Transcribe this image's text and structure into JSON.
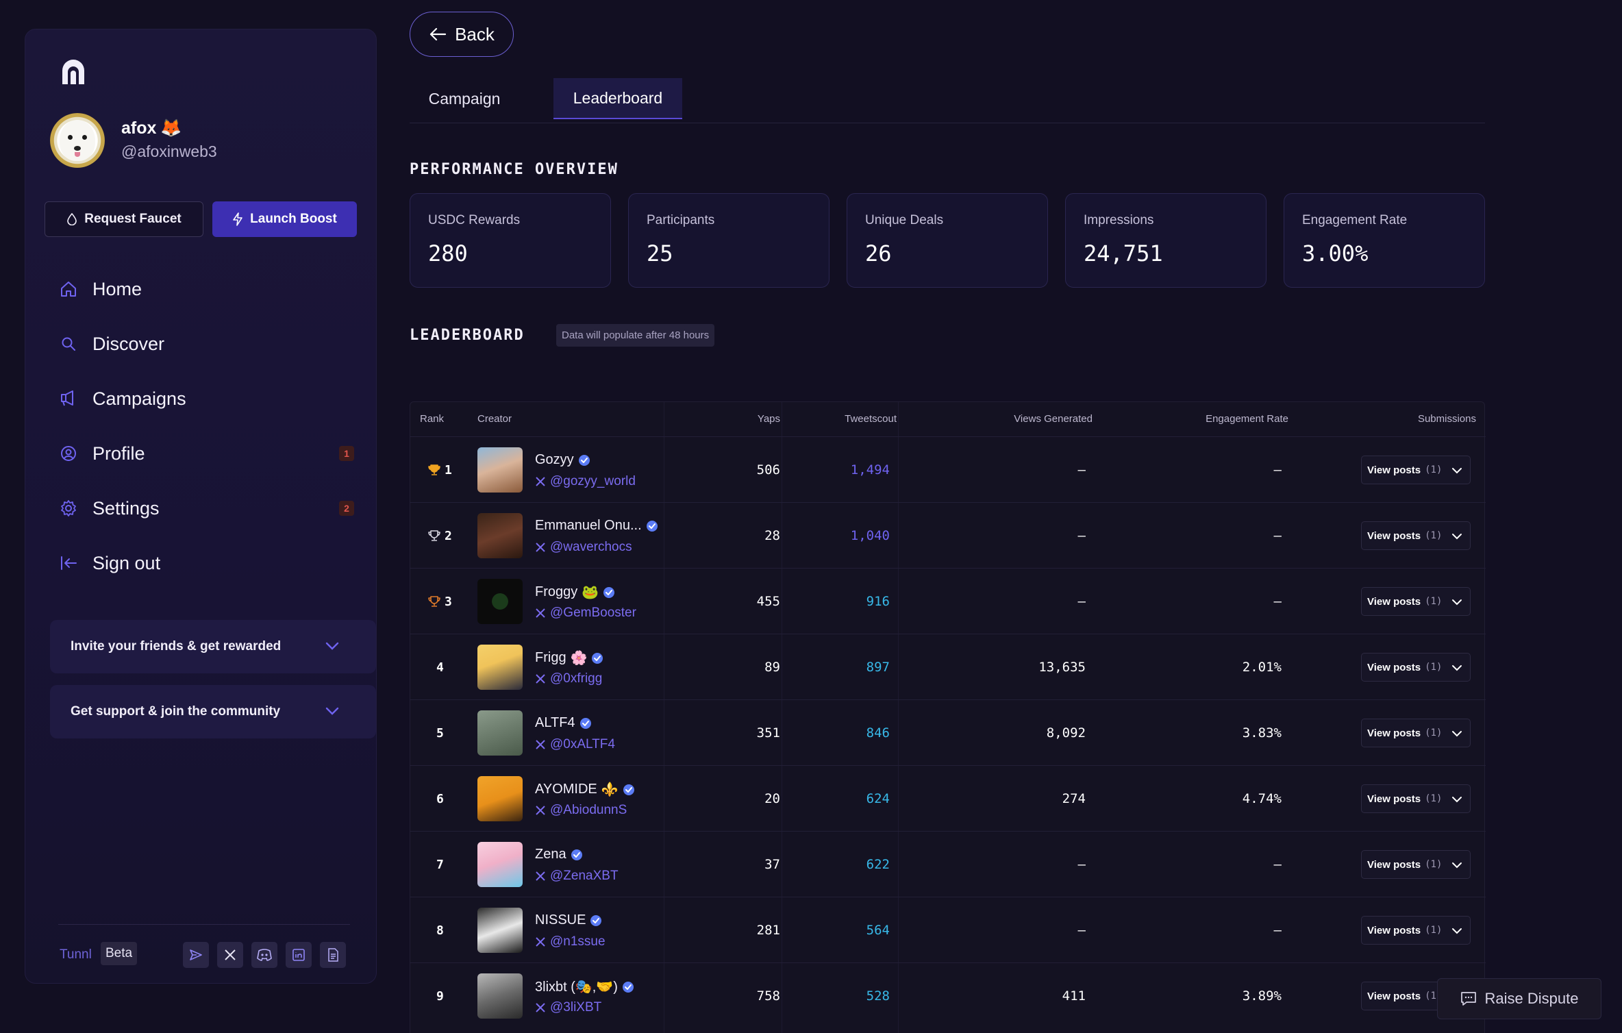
{
  "sidebar": {
    "user": {
      "name": "afox",
      "name_emoji": "🦊",
      "handle": "@afoxinweb3"
    },
    "buttons": {
      "faucet": "Request Faucet",
      "boost": "Launch Boost"
    },
    "nav": [
      {
        "label": "Home",
        "icon": "home-icon"
      },
      {
        "label": "Discover",
        "icon": "search-icon"
      },
      {
        "label": "Campaigns",
        "icon": "megaphone-icon"
      },
      {
        "label": "Profile",
        "icon": "user-circle-icon",
        "badge": "1"
      },
      {
        "label": "Settings",
        "icon": "gear-icon",
        "badge": "2"
      },
      {
        "label": "Sign out",
        "icon": "sign-out-icon"
      }
    ],
    "accordions": [
      {
        "label": "Invite your friends & get rewarded"
      },
      {
        "label": "Get support & join the community"
      }
    ],
    "footer": {
      "brand": "Tunnl",
      "badge": "Beta",
      "socials": [
        "telegram-icon",
        "x-icon",
        "discord-icon",
        "linkedin-icon",
        "docs-icon"
      ]
    }
  },
  "main": {
    "back_label": "Back",
    "tabs": [
      {
        "label": "Campaign"
      },
      {
        "label": "Leaderboard",
        "active": true
      }
    ],
    "overview": {
      "title": "PERFORMANCE OVERVIEW",
      "stats": [
        {
          "label": "USDC Rewards",
          "value": "280"
        },
        {
          "label": "Participants",
          "value": "25"
        },
        {
          "label": "Unique Deals",
          "value": "26"
        },
        {
          "label": "Impressions",
          "value": "24,751"
        },
        {
          "label": "Engagement Rate",
          "value": "3.00%"
        }
      ]
    },
    "leaderboard": {
      "title": "LEADERBOARD",
      "note": "Data will populate after 48 hours",
      "columns": {
        "rank": "Rank",
        "creator": "Creator",
        "yaps": "Yaps",
        "tweetscout": "Tweetscout",
        "views": "Views Generated",
        "engagement": "Engagement Rate",
        "submissions": "Submissions"
      },
      "view_label": "View posts",
      "rows": [
        {
          "rank": "1",
          "trophy": "gold",
          "name": "Gozyy",
          "emoji": "",
          "handle": "@gozyy_world",
          "yaps": "506",
          "tweetscout": "1,494",
          "ts_color": "#6f63f0",
          "views": "–",
          "engagement": "–",
          "posts": "(1)"
        },
        {
          "rank": "2",
          "trophy": "silver",
          "name": "Emmanuel Onu...",
          "emoji": "",
          "handle": "@waverchocs",
          "yaps": "28",
          "tweetscout": "1,040",
          "ts_color": "#6f63f0",
          "views": "–",
          "engagement": "–",
          "posts": "(1)"
        },
        {
          "rank": "3",
          "trophy": "bronze",
          "name": "Froggy",
          "emoji": "🐸",
          "handle": "@GemBooster",
          "yaps": "455",
          "tweetscout": "916",
          "ts_color": "#38b8e8",
          "views": "–",
          "engagement": "–",
          "posts": "(1)"
        },
        {
          "rank": "4",
          "trophy": "",
          "name": "Frigg",
          "emoji": "🌸",
          "handle": "@0xfrigg",
          "yaps": "89",
          "tweetscout": "897",
          "ts_color": "#38b8e8",
          "views": "13,635",
          "engagement": "2.01%",
          "posts": "(1)"
        },
        {
          "rank": "5",
          "trophy": "",
          "name": "ALTF4",
          "emoji": "",
          "handle": "@0xALTF4",
          "yaps": "351",
          "tweetscout": "846",
          "ts_color": "#38b8e8",
          "views": "8,092",
          "engagement": "3.83%",
          "posts": "(1)"
        },
        {
          "rank": "6",
          "trophy": "",
          "name": "AYOMIDE",
          "emoji": "⚜️",
          "handle": "@AbiodunnS",
          "yaps": "20",
          "tweetscout": "624",
          "ts_color": "#38b8e8",
          "views": "274",
          "engagement": "4.74%",
          "posts": "(1)"
        },
        {
          "rank": "7",
          "trophy": "",
          "name": "Zena",
          "emoji": "",
          "handle": "@ZenaXBT",
          "yaps": "37",
          "tweetscout": "622",
          "ts_color": "#38b8e8",
          "views": "–",
          "engagement": "–",
          "posts": "(1)"
        },
        {
          "rank": "8",
          "trophy": "",
          "name": "NISSUE",
          "emoji": "",
          "handle": "@n1ssue",
          "yaps": "281",
          "tweetscout": "564",
          "ts_color": "#38b8e8",
          "views": "–",
          "engagement": "–",
          "posts": "(1)"
        },
        {
          "rank": "9",
          "trophy": "",
          "name": "3lixbt (🎭,🤝)",
          "emoji": "",
          "handle": "@3liXBT",
          "yaps": "758",
          "tweetscout": "528",
          "ts_color": "#38b8e8",
          "views": "411",
          "engagement": "3.89%",
          "posts": "(1"
        }
      ]
    },
    "dispute_label": "Raise Dispute"
  },
  "colors": {
    "accent": "#3d2fb2",
    "link": "#7b6cf0",
    "badge": "#e0554d"
  }
}
